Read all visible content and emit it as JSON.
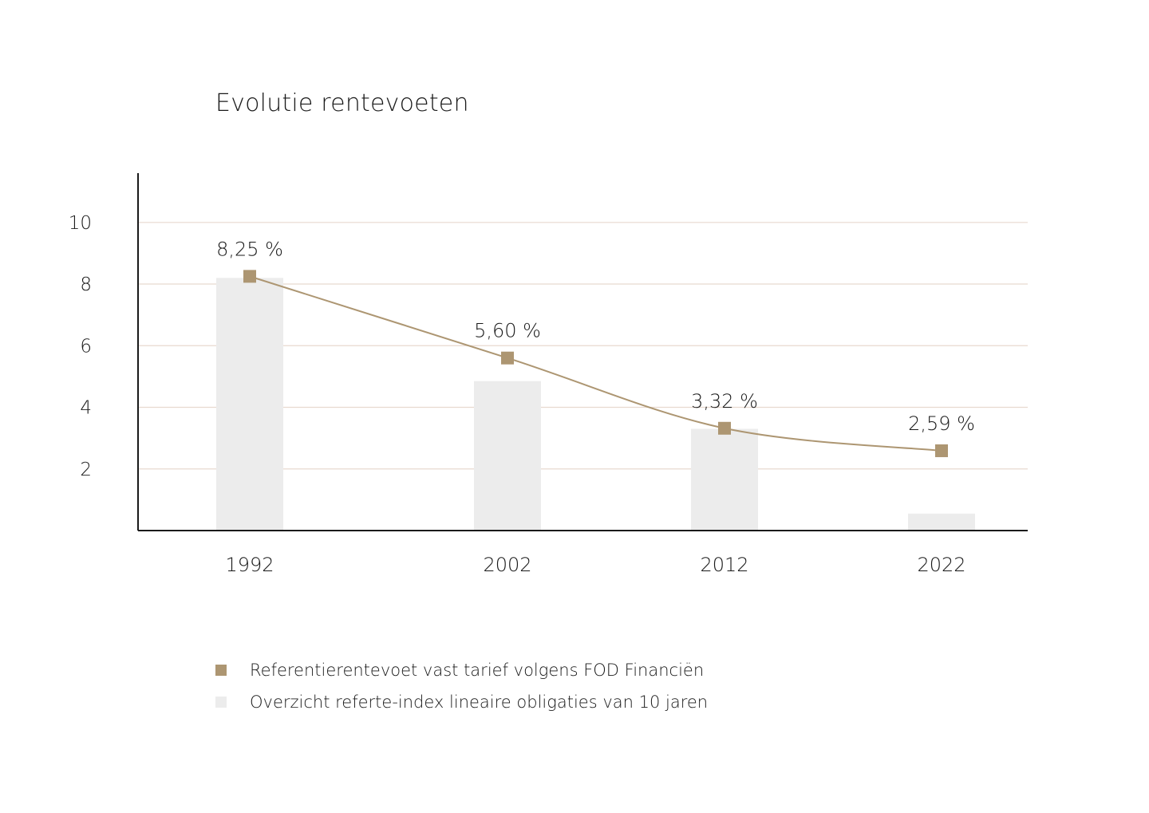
{
  "title": "Evolutie rentevoeten",
  "colors": {
    "line": "#ad9672",
    "marker": "#ad9672",
    "bar": "#ececec",
    "grid": "#e8d9cf",
    "axis": "#1a1a1a"
  },
  "chart_data": {
    "type": "bar",
    "title": "Evolutie rentevoeten",
    "xlabel": "",
    "ylabel": "",
    "categories": [
      "1992",
      "2002",
      "2012",
      "2022"
    ],
    "ylim": [
      0,
      11.6
    ],
    "yticks": [
      "2",
      "4",
      "6",
      "8",
      "10"
    ],
    "grid": true,
    "legend_position": "bottom-left",
    "series": [
      {
        "name": "Referentierentevoet vast tarief volgens FOD Financiën",
        "type": "line",
        "values": [
          8.25,
          5.6,
          3.32,
          2.59
        ],
        "labels": [
          "8,25 %",
          "5,60 %",
          "3,32 %",
          "2,59 %"
        ]
      },
      {
        "name": "Overzicht referte-index lineaire obligaties van 10 jaren",
        "type": "bar",
        "values": [
          8.2,
          4.85,
          3.3,
          0.55
        ]
      }
    ]
  }
}
